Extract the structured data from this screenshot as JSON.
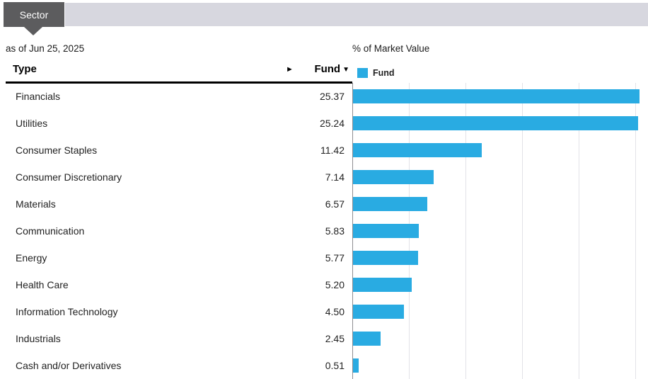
{
  "tab_bar": {
    "active_tab": "Sector"
  },
  "as_of": "as of Jun 25, 2025",
  "table": {
    "type_header": "Type",
    "fund_header": "Fund",
    "sort_desc_icon": "▼",
    "expand_icon": "►"
  },
  "chart_header": {
    "title": "% of Market Value",
    "legend_label": "Fund"
  },
  "colors": {
    "bar": "#29abe2",
    "tab_active": "#5c5c5e",
    "tab_bar": "#d7d7df"
  },
  "chart_data": {
    "type": "bar",
    "orientation": "horizontal",
    "title": "% of Market Value",
    "legend": [
      "Fund"
    ],
    "legend_position": "top",
    "grid": "vertical-only",
    "categories": [
      "Financials",
      "Utilities",
      "Consumer Staples",
      "Consumer Discretionary",
      "Materials",
      "Communication",
      "Energy",
      "Health Care",
      "Information Technology",
      "Industrials",
      "Cash and/or Derivatives"
    ],
    "values": [
      25.37,
      25.24,
      11.42,
      7.14,
      6.57,
      5.83,
      5.77,
      5.2,
      4.5,
      2.45,
      0.51
    ],
    "xlim": [
      0,
      26.125
    ],
    "gridline_step": 5,
    "value_format": "2dp"
  }
}
